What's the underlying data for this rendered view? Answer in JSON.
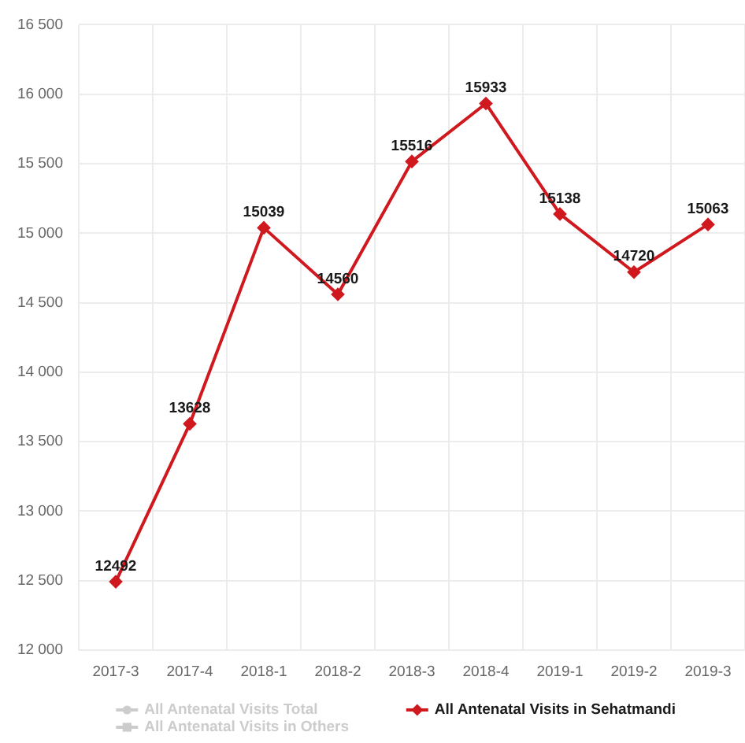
{
  "chart_data": {
    "type": "line",
    "categories": [
      "2017-3",
      "2017-4",
      "2018-1",
      "2018-2",
      "2018-3",
      "2018-4",
      "2019-1",
      "2019-2",
      "2019-3"
    ],
    "series": [
      {
        "name": "All Antenatal Visits Total",
        "color": "#cccccc",
        "marker": "circle",
        "values": [
          null,
          null,
          null,
          null,
          null,
          null,
          null,
          null,
          null
        ]
      },
      {
        "name": "All Antenatal Visits in Others",
        "color": "#cccccc",
        "marker": "square",
        "values": [
          null,
          null,
          null,
          null,
          null,
          null,
          null,
          null,
          null
        ]
      },
      {
        "name": "All Antenatal Visits in Sehatmandi",
        "color": "#d0191f",
        "marker": "diamond",
        "values": [
          12492,
          13628,
          15039,
          14560,
          15516,
          15933,
          15138,
          14720,
          15063
        ]
      }
    ],
    "ylim": [
      12000,
      16500
    ],
    "yticks": [
      {
        "value": 12000,
        "label": "12 000"
      },
      {
        "value": 12500,
        "label": "12 500"
      },
      {
        "value": 13000,
        "label": "13 000"
      },
      {
        "value": 13500,
        "label": "13 500"
      },
      {
        "value": 14000,
        "label": "14 000"
      },
      {
        "value": 14500,
        "label": "14 500"
      },
      {
        "value": 15000,
        "label": "15 000"
      },
      {
        "value": 15500,
        "label": "15 500"
      },
      {
        "value": 16000,
        "label": "16 000"
      },
      {
        "value": 16500,
        "label": "16 500"
      }
    ],
    "grid": true,
    "legend": "bottom",
    "data_labels": true,
    "line_style": "solid"
  }
}
